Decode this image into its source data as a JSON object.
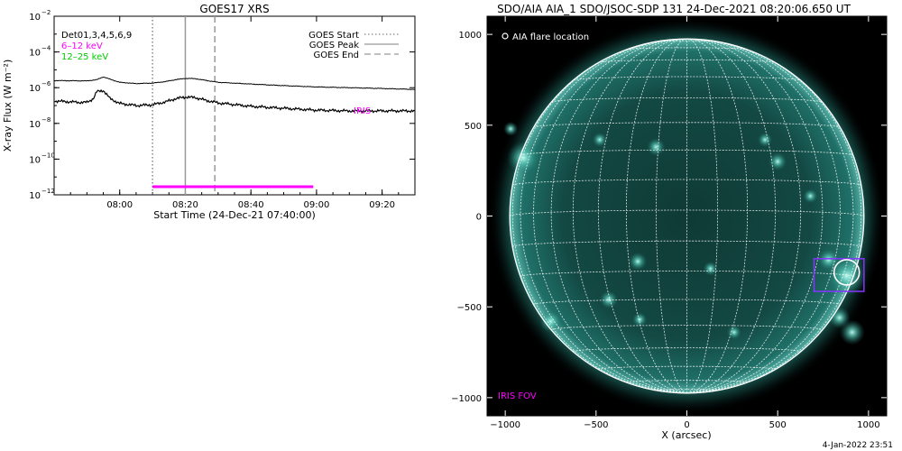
{
  "chart_data": [
    {
      "type": "line",
      "title": "GOES17 XRS",
      "xlabel": "Start Time (24-Dec-21 07:40:00)",
      "ylabel": "X-ray Flux (W m⁻²)",
      "y_scale": "log",
      "ylim": [
        1e-12,
        0.01
      ],
      "xlim": [
        "07:40",
        "09:30"
      ],
      "x_ticks": [
        "08:00",
        "08:20",
        "08:40",
        "09:00",
        "09:20"
      ],
      "y_ticks": [
        {
          "value": 1e-12,
          "base": "10",
          "exp": "−12"
        },
        {
          "value": 1e-10,
          "base": "10",
          "exp": "−10"
        },
        {
          "value": 1e-08,
          "base": "10",
          "exp": "−8"
        },
        {
          "value": 1e-06,
          "base": "10",
          "exp": "−6"
        },
        {
          "value": 0.0001,
          "base": "10",
          "exp": "−4"
        },
        {
          "value": 0.01,
          "base": "10",
          "exp": "−2"
        }
      ],
      "detector_label": "Det01,3,4,5,6,9",
      "energy_legend": [
        {
          "label": "6–12 keV",
          "color": "#ff00ff"
        },
        {
          "label": "12–25 keV",
          "color": "#00cc00"
        }
      ],
      "event_legend": [
        {
          "label": "GOES Start",
          "style": "dotted",
          "time": "08:10"
        },
        {
          "label": "GOES Peak",
          "style": "solid",
          "time": "08:20"
        },
        {
          "label": "GOES End",
          "style": "dashed",
          "time": "08:29"
        }
      ],
      "iris_interval": {
        "start": "08:10",
        "end": "08:59",
        "color": "#ff00ff"
      },
      "iris_label": "IRIS",
      "series": [
        {
          "color": "#000000",
          "x": [
            "07:40",
            "07:50",
            "07:53",
            "07:55",
            "07:57",
            "08:00",
            "08:05",
            "08:10",
            "08:14",
            "08:17",
            "08:20",
            "08:23",
            "08:26",
            "08:30",
            "08:40",
            "08:50",
            "09:00",
            "09:10",
            "09:20",
            "09:30"
          ],
          "values": [
            2.5e-06,
            2.4e-06,
            2.8e-06,
            4e-06,
            3e-06,
            2e-06,
            1.7e-06,
            1.8e-06,
            2.2e-06,
            2.8e-06,
            3.3e-06,
            3.2e-06,
            2.6e-06,
            2e-06,
            1.6e-06,
            1.3e-06,
            1.1e-06,
            1e-06,
            9e-07,
            8e-07
          ]
        },
        {
          "color": "#000000",
          "x": [
            "07:40",
            "07:48",
            "07:50",
            "07:52",
            "07:53",
            "07:55",
            "07:57",
            "08:00",
            "08:05",
            "08:10",
            "08:14",
            "08:17",
            "08:20",
            "08:23",
            "08:26",
            "08:30",
            "08:40",
            "08:50",
            "09:00",
            "09:10",
            "09:20",
            "09:30"
          ],
          "values": [
            1.8e-07,
            1.5e-07,
            1.5e-07,
            2.5e-07,
            6e-07,
            7e-07,
            2.5e-07,
            1.3e-07,
            1e-07,
            1.1e-07,
            1.6e-07,
            2.4e-07,
            3e-07,
            2.8e-07,
            2e-07,
            1.4e-07,
            9e-08,
            7e-08,
            5.5e-08,
            5e-08,
            5e-08,
            5e-08
          ]
        }
      ]
    },
    {
      "type": "scatter",
      "title": "SDO/AIA AIA_1 SDO/JSOC-SDP 131 24-Dec-2021 08:20:06.650 UT",
      "xlabel": "X (arcsec)",
      "ylabel": "",
      "xlim": [
        -1100,
        1100
      ],
      "ylim": [
        -1100,
        1100
      ],
      "x_ticks": [
        -1000,
        -500,
        0,
        500,
        1000
      ],
      "y_ticks": [
        -1000,
        -500,
        0,
        500,
        1000
      ],
      "solar_radius_arcsec": 975,
      "grid_spacing_deg": 10,
      "legend_label": "AIA flare location",
      "flare_location": {
        "x": 880,
        "y": -310
      },
      "iris_fov": {
        "x_min": 700,
        "x_max": 975,
        "y_min": -415,
        "y_max": -235,
        "color": "#8833ff"
      },
      "iris_fov_label": "IRIS FOV",
      "footer_date": "4-Jan-2022 23:51",
      "active_regions": [
        {
          "x": -970,
          "y": 480,
          "r": 40
        },
        {
          "x": -900,
          "y": 320,
          "r": 90
        },
        {
          "x": -480,
          "y": 420,
          "r": 40
        },
        {
          "x": -170,
          "y": 380,
          "r": 50
        },
        {
          "x": 430,
          "y": 420,
          "r": 40
        },
        {
          "x": 500,
          "y": 300,
          "r": 50
        },
        {
          "x": 680,
          "y": 110,
          "r": 40
        },
        {
          "x": -270,
          "y": -250,
          "r": 50
        },
        {
          "x": -430,
          "y": -460,
          "r": 50
        },
        {
          "x": -260,
          "y": -570,
          "r": 40
        },
        {
          "x": 130,
          "y": -290,
          "r": 40
        },
        {
          "x": 260,
          "y": -640,
          "r": 40
        },
        {
          "x": -750,
          "y": -580,
          "r": 60
        },
        {
          "x": 880,
          "y": -330,
          "r": 110
        },
        {
          "x": 780,
          "y": -240,
          "r": 60
        },
        {
          "x": 840,
          "y": -560,
          "r": 60
        },
        {
          "x": 910,
          "y": -640,
          "r": 70
        }
      ]
    }
  ]
}
